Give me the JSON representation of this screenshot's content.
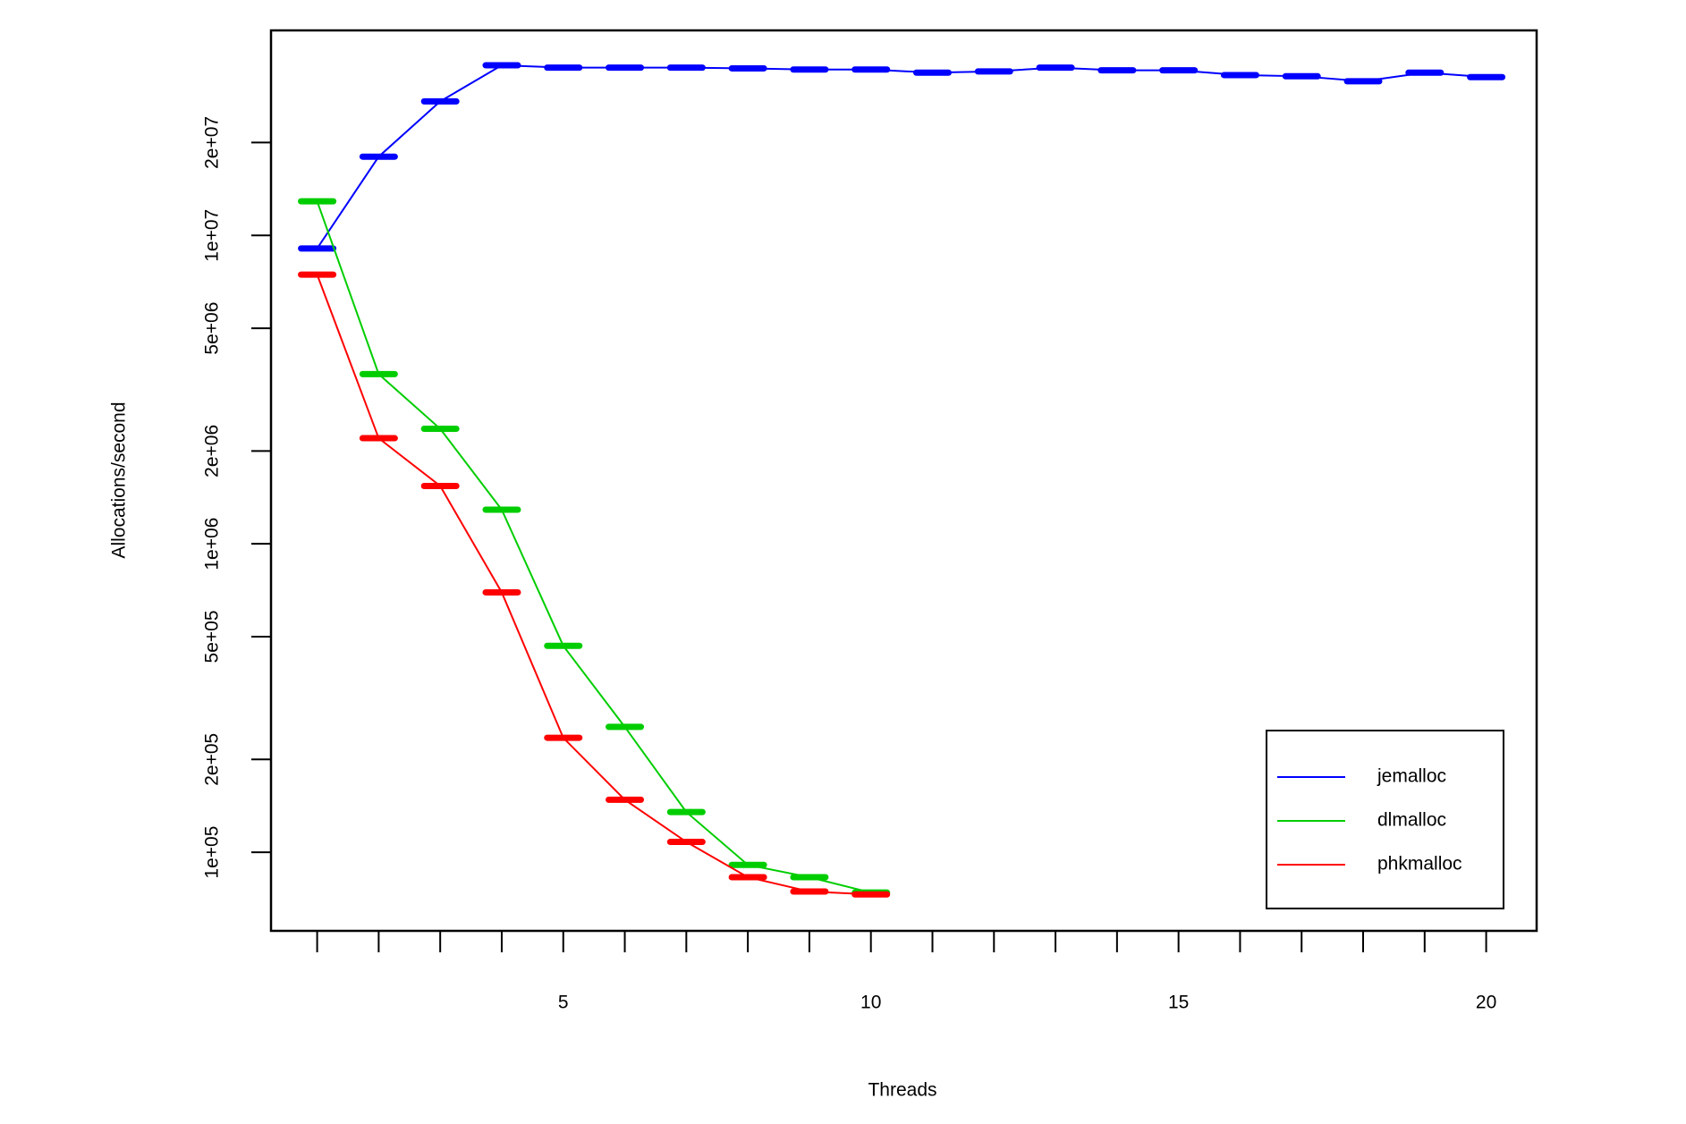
{
  "chart_data": {
    "type": "line",
    "xlabel": "Threads",
    "ylabel": "Allocations/second",
    "x": [
      1,
      2,
      3,
      4,
      5,
      6,
      7,
      8,
      9,
      10,
      11,
      12,
      13,
      14,
      15,
      16,
      17,
      18,
      19,
      20
    ],
    "series": [
      {
        "name": "jemalloc",
        "color": "#0000ff",
        "values": [
          9070000,
          18000000,
          27200000,
          35600000,
          35000000,
          35000000,
          35000000,
          34800000,
          34500000,
          34500000,
          33700000,
          34000000,
          35000000,
          34300000,
          34300000,
          33100000,
          32800000,
          31600000,
          33700000,
          32600000
        ]
      },
      {
        "name": "dlmalloc",
        "color": "#00cd00",
        "values": [
          12900000,
          3550000,
          2360000,
          1290000,
          467000,
          255000,
          135000,
          91000,
          83000,
          74000,
          null,
          null,
          null,
          null,
          null,
          null,
          null,
          null,
          null,
          null
        ]
      },
      {
        "name": "phkmalloc",
        "color": "#ff0000",
        "values": [
          7460000,
          2200000,
          1540000,
          696000,
          235000,
          148000,
          108000,
          83000,
          74600,
          73000,
          null,
          null,
          null,
          null,
          null,
          null,
          null,
          null,
          null,
          null
        ]
      }
    ],
    "xlim": [
      0.25,
      20.82
    ],
    "xticks": [
      5,
      10,
      15,
      20
    ],
    "ylim": [
      55600,
      46200000
    ],
    "log_y": true,
    "yticks": [
      {
        "value": 100000,
        "label": "1e+05"
      },
      {
        "value": 200000,
        "label": "2e+05"
      },
      {
        "value": 500000,
        "label": "5e+05"
      },
      {
        "value": 1000000,
        "label": "1e+06"
      },
      {
        "value": 2000000,
        "label": "2e+06"
      },
      {
        "value": 5000000,
        "label": "5e+06"
      },
      {
        "value": 10000000,
        "label": "1e+07"
      },
      {
        "value": 20000000,
        "label": "2e+07"
      }
    ],
    "legend": "bottom-right"
  }
}
